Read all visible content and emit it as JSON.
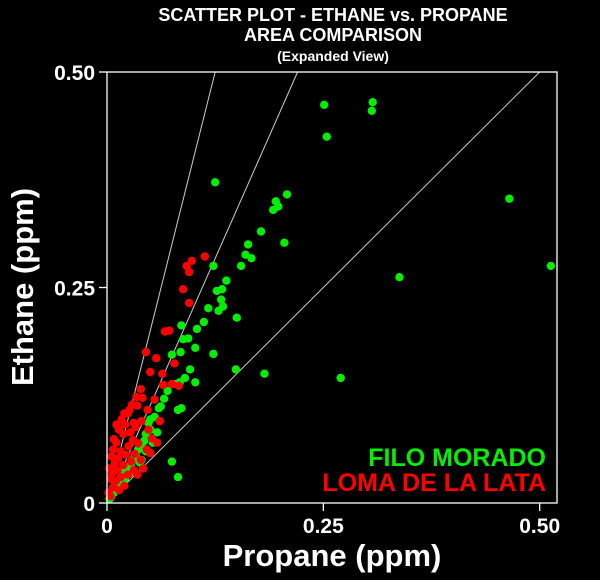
{
  "colors": {
    "background": "#000000",
    "axes": "#ffffff",
    "filo": "#00ee00",
    "loma": "#ff0000",
    "ref": "#cccccc"
  },
  "chart_data": {
    "type": "scatter",
    "title": "SCATTER PLOT - ETHANE vs. PROPANE",
    "subtitle": "AREA COMPARISON",
    "subtitle2": "(Expanded View)",
    "xlabel": "Propane (ppm)",
    "ylabel": "Ethane (ppm)",
    "xlim": [
      0,
      0.52
    ],
    "ylim": [
      0,
      0.5
    ],
    "xticks": [
      0,
      0.25,
      0.5
    ],
    "xtick_labels": [
      "0",
      "0.25",
      "0.50"
    ],
    "yticks": [
      0,
      0.25,
      0.5
    ],
    "ytick_labels": [
      "0",
      "0.25",
      "0.50"
    ],
    "legend_position": "bottom-right",
    "reference_lines": [
      {
        "slope": 4
      },
      {
        "slope": 2.27
      },
      {
        "slope": 1
      }
    ],
    "series": [
      {
        "name": "FILO MORADO",
        "color": "#00ee00",
        "points": [
          [
            0.251,
            0.462
          ],
          [
            0.254,
            0.425
          ],
          [
            0.307,
            0.465
          ],
          [
            0.306,
            0.455
          ],
          [
            0.465,
            0.353
          ],
          [
            0.513,
            0.275
          ],
          [
            0.338,
            0.262
          ],
          [
            0.27,
            0.145
          ],
          [
            0.182,
            0.15
          ],
          [
            0.149,
            0.155
          ],
          [
            0.125,
            0.372
          ],
          [
            0.208,
            0.358
          ],
          [
            0.195,
            0.35
          ],
          [
            0.198,
            0.344
          ],
          [
            0.192,
            0.34
          ],
          [
            0.178,
            0.315
          ],
          [
            0.163,
            0.3
          ],
          [
            0.16,
            0.288
          ],
          [
            0.167,
            0.284
          ],
          [
            0.155,
            0.275
          ],
          [
            0.205,
            0.302
          ],
          [
            0.123,
            0.275
          ],
          [
            0.138,
            0.258
          ],
          [
            0.133,
            0.248
          ],
          [
            0.127,
            0.246
          ],
          [
            0.132,
            0.236
          ],
          [
            0.134,
            0.228
          ],
          [
            0.129,
            0.223
          ],
          [
            0.117,
            0.226
          ],
          [
            0.112,
            0.21
          ],
          [
            0.104,
            0.202
          ],
          [
            0.15,
            0.215
          ],
          [
            0.086,
            0.206
          ],
          [
            0.094,
            0.191
          ],
          [
            0.088,
            0.19
          ],
          [
            0.085,
            0.175
          ],
          [
            0.075,
            0.172
          ],
          [
            0.102,
            0.18
          ],
          [
            0.123,
            0.173
          ],
          [
            0.096,
            0.155
          ],
          [
            0.09,
            0.145
          ],
          [
            0.084,
            0.14
          ],
          [
            0.08,
            0.138
          ],
          [
            0.102,
            0.14
          ],
          [
            0.07,
            0.13
          ],
          [
            0.066,
            0.121
          ],
          [
            0.062,
            0.112
          ],
          [
            0.06,
            0.11
          ],
          [
            0.055,
            0.1
          ],
          [
            0.05,
            0.097
          ],
          [
            0.048,
            0.093
          ],
          [
            0.086,
            0.11
          ],
          [
            0.082,
            0.108
          ],
          [
            0.05,
            0.085
          ],
          [
            0.045,
            0.08
          ],
          [
            0.058,
            0.082
          ],
          [
            0.043,
            0.072
          ],
          [
            0.04,
            0.068
          ],
          [
            0.036,
            0.062
          ],
          [
            0.053,
            0.07
          ],
          [
            0.033,
            0.055
          ],
          [
            0.03,
            0.05
          ],
          [
            0.028,
            0.046
          ],
          [
            0.025,
            0.041
          ],
          [
            0.022,
            0.036
          ],
          [
            0.02,
            0.032
          ],
          [
            0.017,
            0.028
          ],
          [
            0.015,
            0.024
          ],
          [
            0.012,
            0.02
          ],
          [
            0.01,
            0.016
          ],
          [
            0.008,
            0.012
          ],
          [
            0.005,
            0.008
          ],
          [
            0.003,
            0.005
          ],
          [
            0.075,
            0.048
          ],
          [
            0.082,
            0.03
          ],
          [
            0.045,
            0.06
          ],
          [
            0.04,
            0.05
          ],
          [
            0.038,
            0.047
          ],
          [
            0.026,
            0.034
          ],
          [
            0.021,
            0.028
          ]
        ]
      },
      {
        "name": "LOMA DE LA LATA",
        "color": "#ff0000",
        "points": [
          [
            0.113,
            0.286
          ],
          [
            0.098,
            0.281
          ],
          [
            0.092,
            0.275
          ],
          [
            0.095,
            0.268
          ],
          [
            0.088,
            0.248
          ],
          [
            0.095,
            0.232
          ],
          [
            0.072,
            0.2
          ],
          [
            0.067,
            0.199
          ],
          [
            0.045,
            0.175
          ],
          [
            0.057,
            0.168
          ],
          [
            0.05,
            0.152
          ],
          [
            0.064,
            0.15
          ],
          [
            0.078,
            0.162
          ],
          [
            0.065,
            0.137
          ],
          [
            0.075,
            0.138
          ],
          [
            0.083,
            0.136
          ],
          [
            0.041,
            0.122
          ],
          [
            0.034,
            0.123
          ],
          [
            0.029,
            0.114
          ],
          [
            0.035,
            0.113
          ],
          [
            0.02,
            0.104
          ],
          [
            0.024,
            0.104
          ],
          [
            0.017,
            0.097
          ],
          [
            0.04,
            0.095
          ],
          [
            0.031,
            0.093
          ],
          [
            0.011,
            0.091
          ],
          [
            0.021,
            0.091
          ],
          [
            0.033,
            0.088
          ],
          [
            0.014,
            0.085
          ],
          [
            0.027,
            0.082
          ],
          [
            0.048,
            0.085
          ],
          [
            0.052,
            0.075
          ],
          [
            0.019,
            0.08
          ],
          [
            0.008,
            0.074
          ],
          [
            0.03,
            0.073
          ],
          [
            0.011,
            0.07
          ],
          [
            0.036,
            0.069
          ],
          [
            0.025,
            0.066
          ],
          [
            0.007,
            0.062
          ],
          [
            0.046,
            0.062
          ],
          [
            0.016,
            0.06
          ],
          [
            0.032,
            0.057
          ],
          [
            0.022,
            0.056
          ],
          [
            0.005,
            0.054
          ],
          [
            0.013,
            0.052
          ],
          [
            0.039,
            0.05
          ],
          [
            0.028,
            0.048
          ],
          [
            0.009,
            0.046
          ],
          [
            0.019,
            0.044
          ],
          [
            0.003,
            0.04
          ],
          [
            0.012,
            0.038
          ],
          [
            0.031,
            0.038
          ],
          [
            0.006,
            0.034
          ],
          [
            0.024,
            0.033
          ],
          [
            0.016,
            0.03
          ],
          [
            0.004,
            0.028
          ],
          [
            0.01,
            0.025
          ],
          [
            0.035,
            0.033
          ],
          [
            0.02,
            0.02
          ],
          [
            0.007,
            0.018
          ],
          [
            0.002,
            0.012
          ],
          [
            0.014,
            0.015
          ],
          [
            0.042,
            0.04
          ],
          [
            0.05,
            0.058
          ],
          [
            0.058,
            0.07
          ],
          [
            0.061,
            0.095
          ],
          [
            0.047,
            0.108
          ],
          [
            0.039,
            0.132
          ],
          [
            0.026,
            0.108
          ],
          [
            0.055,
            0.12
          ],
          [
            0.004,
            0.008
          ]
        ]
      }
    ]
  }
}
